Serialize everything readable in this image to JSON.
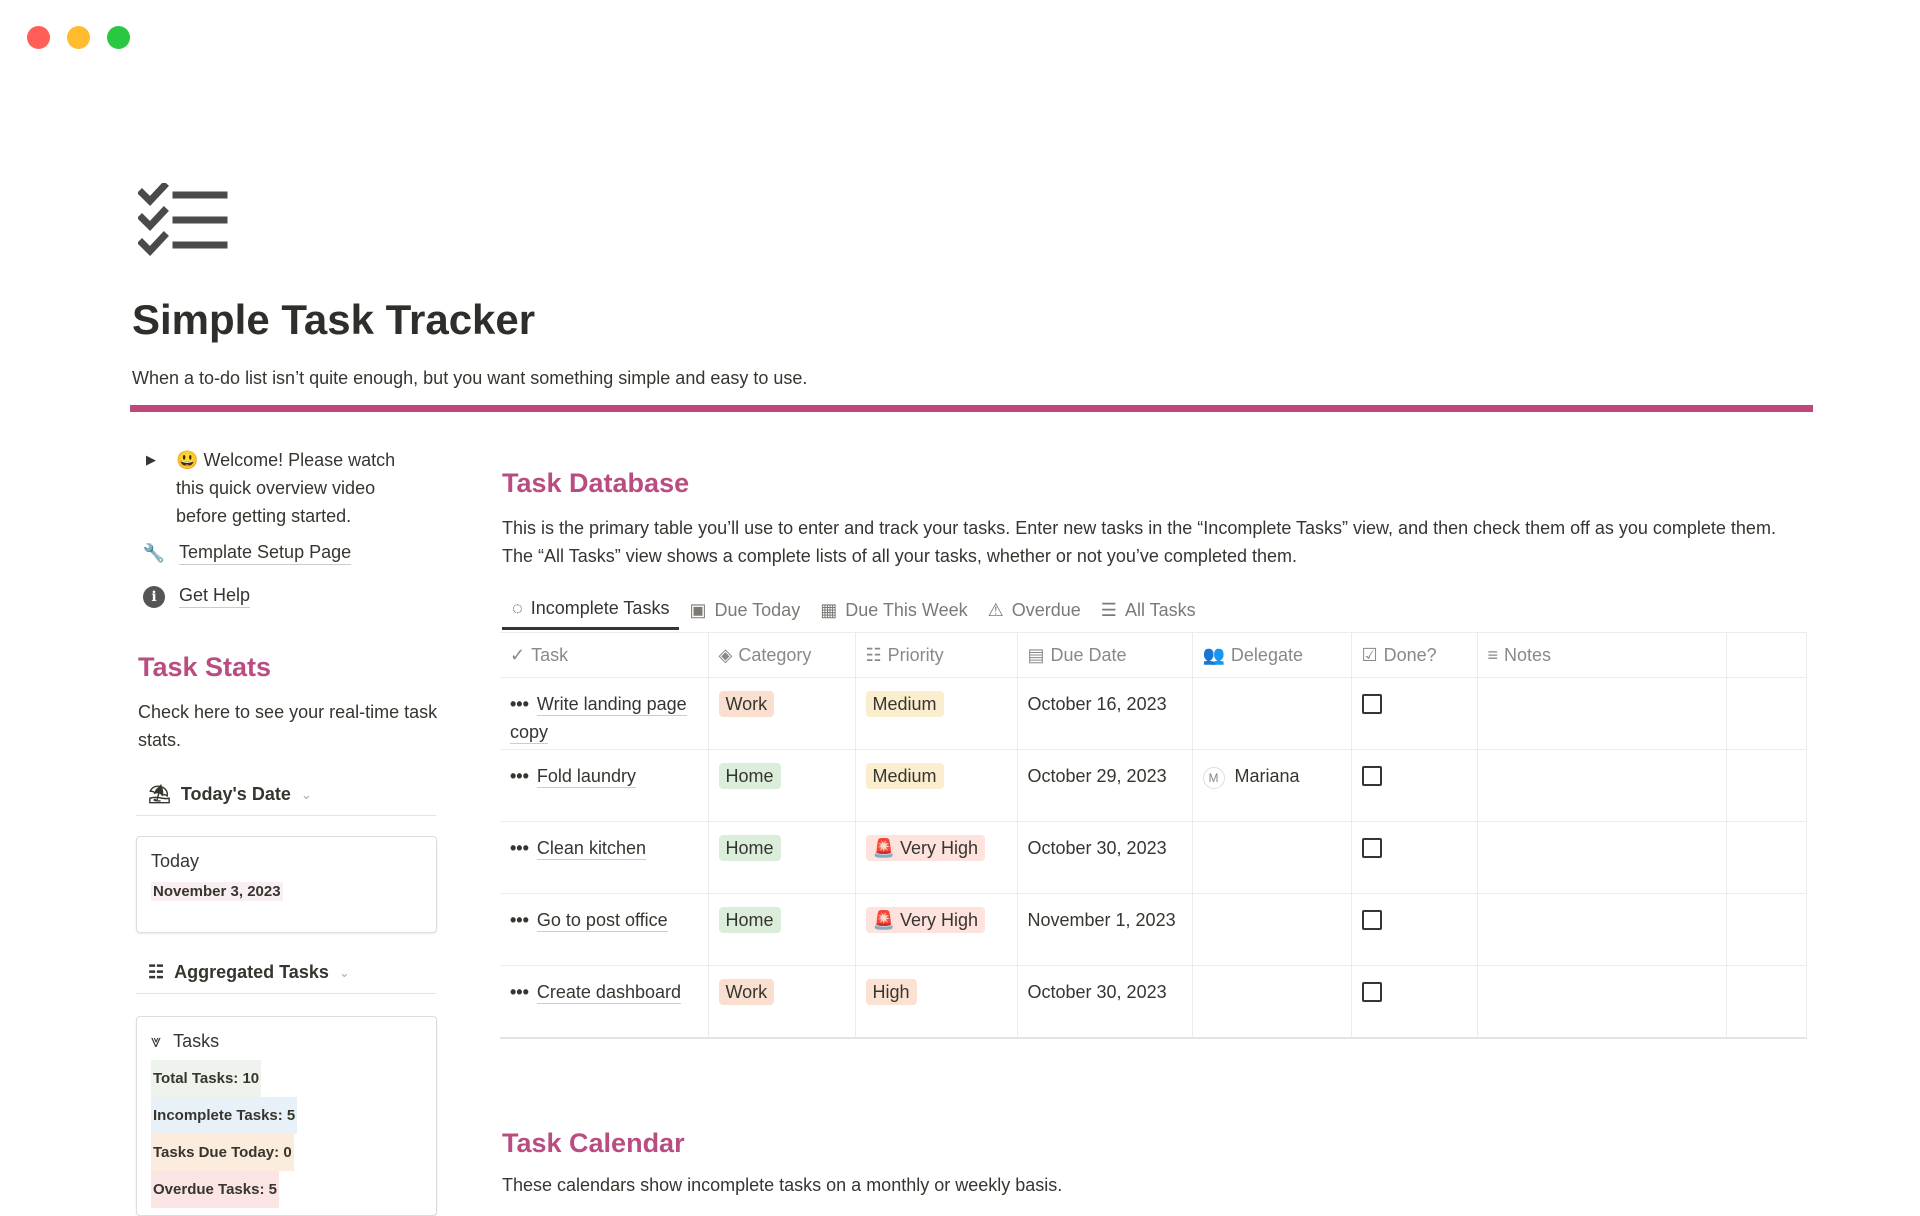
{
  "window": {
    "controls": {
      "close": "#ff5f57",
      "minimize": "#febc2e",
      "maximize": "#28c840"
    }
  },
  "page": {
    "icon": "checklist-icon",
    "title": "Simple Task Tracker",
    "subtitle": "When a to-do list isn’t quite enough, but you want something simple and easy to use.",
    "accent": "#c0477c"
  },
  "sidebar": {
    "welcome": "Welcome! Please watch this quick overview video before getting started.",
    "welcome_emoji": "😃",
    "template_setup": "Template Setup Page",
    "get_help": "Get Help",
    "stats_title": "Task Stats",
    "stats_desc": "Check here to see your real-time task stats.",
    "todays_date_label": "Today's Date",
    "today_card": {
      "label": "Today",
      "value": "November 3, 2023"
    },
    "aggregated_label": "Aggregated Tasks",
    "tasks_card": {
      "label": "Tasks",
      "stats": [
        "Total Tasks: 10",
        "Incomplete Tasks: 5",
        "Tasks Due Today: 0",
        "Overdue Tasks: 5"
      ]
    }
  },
  "database": {
    "title": "Task Database",
    "description": "This is the primary table you’ll use to enter and track your tasks. Enter new tasks in the “Incomplete Tasks” view, and then check them off as you complete them. The “All Tasks” view shows a complete lists of all your tasks, whether or not you’ve completed them.",
    "tabs": [
      "Incomplete Tasks",
      "Due Today",
      "Due This Week",
      "Overdue",
      "All Tasks"
    ],
    "columns": [
      "Task",
      "Category",
      "Priority",
      "Due Date",
      "Delegate",
      "Done?",
      "Notes"
    ],
    "rows": [
      {
        "task": "Write landing page copy",
        "category": "Work",
        "priority": "Medium",
        "due": "October 16, 2023",
        "delegate": "",
        "done": false
      },
      {
        "task": "Fold laundry",
        "category": "Home",
        "priority": "Medium",
        "due": "October 29, 2023",
        "delegate": "Mariana",
        "delegate_initial": "M",
        "done": false
      },
      {
        "task": "Clean kitchen",
        "category": "Home",
        "priority": "Very High",
        "due": "October 30, 2023",
        "delegate": "",
        "done": false
      },
      {
        "task": "Go to post office",
        "category": "Home",
        "priority": "Very High",
        "due": "November 1, 2023",
        "delegate": "",
        "done": false
      },
      {
        "task": "Create dashboard",
        "category": "Work",
        "priority": "High",
        "due": "October 30, 2023",
        "delegate": "",
        "done": false
      }
    ]
  },
  "calendar": {
    "title": "Task Calendar",
    "description": "These calendars show incomplete tasks on a monthly or weekly basis."
  }
}
